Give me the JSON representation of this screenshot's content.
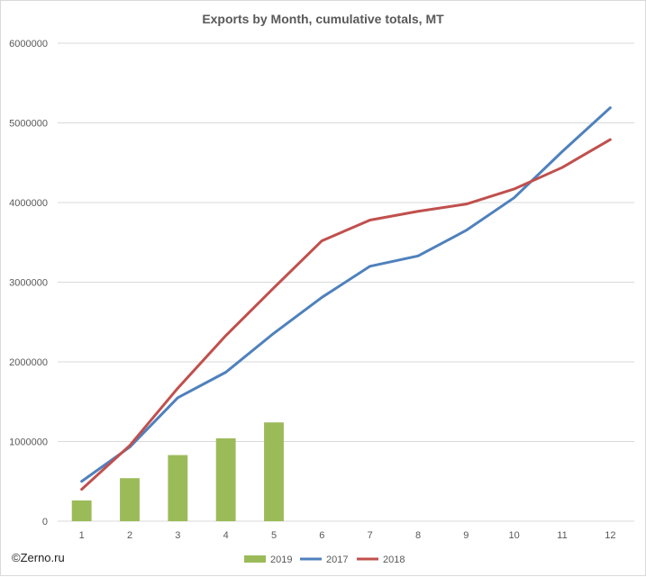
{
  "chart_data": {
    "type": "bar",
    "title": "Exports by Month, cumulative totals, MT",
    "categories": [
      "1",
      "2",
      "3",
      "4",
      "5",
      "6",
      "7",
      "8",
      "9",
      "10",
      "11",
      "12"
    ],
    "y_ticks": [
      "0",
      "1000000",
      "2000000",
      "3000000",
      "4000000",
      "5000000",
      "6000000"
    ],
    "ylim": [
      0,
      6000000
    ],
    "grid": true,
    "legend_position": "bottom",
    "series": [
      {
        "name": "2019",
        "kind": "bar",
        "color": "#9bbb59",
        "values": [
          260000,
          540000,
          830000,
          1040000,
          1240000,
          null,
          null,
          null,
          null,
          null,
          null,
          null
        ]
      },
      {
        "name": "2017",
        "kind": "line",
        "color": "#4f81bd",
        "values": [
          500000,
          930000,
          1550000,
          1870000,
          2360000,
          2810000,
          3200000,
          3330000,
          3650000,
          4060000,
          4640000,
          5190000
        ]
      },
      {
        "name": "2018",
        "kind": "line",
        "color": "#c0504d",
        "values": [
          400000,
          950000,
          1670000,
          2330000,
          2930000,
          3520000,
          3780000,
          3890000,
          3980000,
          4170000,
          4440000,
          4790000
        ]
      }
    ]
  },
  "credit": "©Zerno.ru"
}
